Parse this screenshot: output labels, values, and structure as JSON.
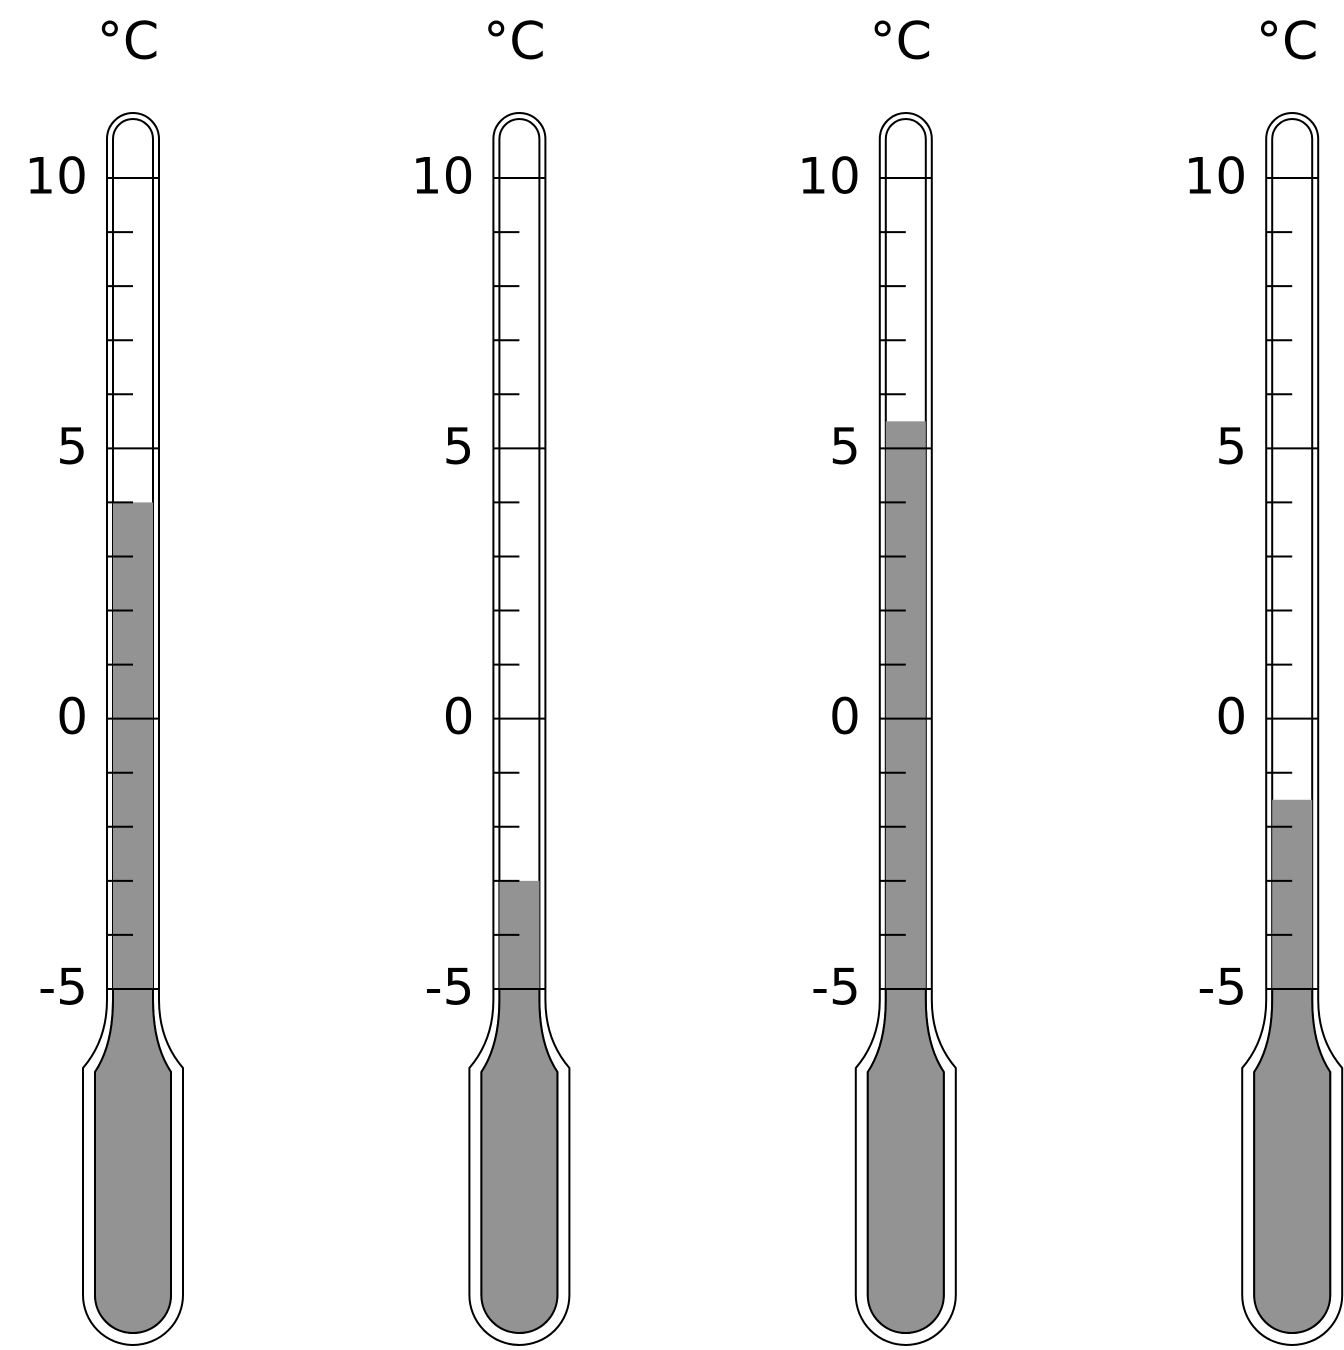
{
  "chart_data": {
    "type": "thermometer",
    "unit": "°C",
    "values": [
      4,
      -3,
      5.5,
      -1.5
    ],
    "color": "#939393",
    "ylim": [
      -5,
      10
    ],
    "yticks": [
      -5,
      0,
      5,
      10
    ],
    "minor_yticks": [
      -4,
      -3,
      -2,
      -1,
      1,
      2,
      3,
      4,
      6,
      7,
      8,
      9
    ]
  }
}
